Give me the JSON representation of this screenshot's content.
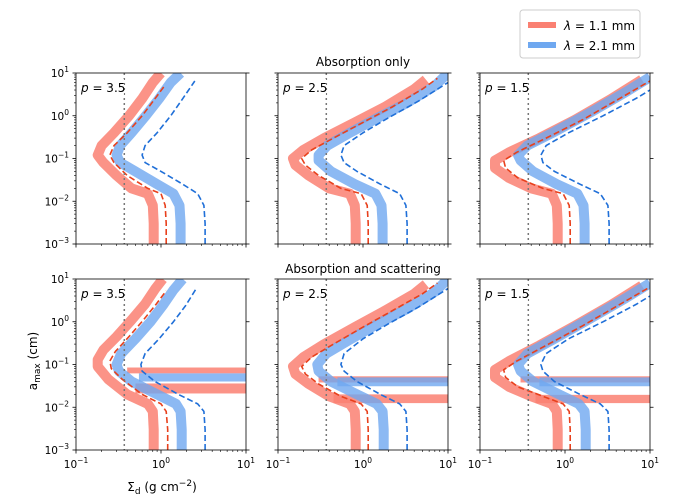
{
  "chart_data": {
    "type": "line",
    "layout": "2 rows x 3 columns of panels, shared log-scale axes",
    "xlabel": "Σ_d (g cm⁻²)",
    "xlabel_parts": {
      "base": "Σ",
      "sub": "d",
      "rest": " (g cm",
      "sup": "−2",
      "end": ")"
    },
    "ylabel": "a_max (cm)",
    "ylabel_parts": {
      "base": "a",
      "sub": "max",
      "rest": " (cm)"
    },
    "xscale": "log",
    "yscale": "log",
    "xlim": [
      0.1,
      10
    ],
    "ylim": [
      0.001,
      10
    ],
    "x_tick_values": [
      0.1,
      1,
      10
    ],
    "x_tick_labels": [
      {
        "base": "10",
        "exp": "−1"
      },
      {
        "base": "10",
        "exp": "0"
      },
      {
        "base": "10",
        "exp": "1"
      }
    ],
    "y_tick_values": [
      0.001,
      0.01,
      0.1,
      1,
      10
    ],
    "y_tick_labels": [
      {
        "base": "10",
        "exp": "−3"
      },
      {
        "base": "10",
        "exp": "−2"
      },
      {
        "base": "10",
        "exp": "−1"
      },
      {
        "base": "10",
        "exp": "0"
      },
      {
        "base": "10",
        "exp": "1"
      }
    ],
    "vertical_dotted_line_x": 0.37,
    "row_titles": [
      "Absorption only",
      "Absorption and scattering"
    ],
    "panel_labels": [
      "p = 3.5",
      "p = 2.5",
      "p = 1.5"
    ],
    "panel_label_parts": [
      {
        "var": "p",
        "eq": " = 3.5"
      },
      {
        "var": "p",
        "eq": " = 2.5"
      },
      {
        "var": "p",
        "eq": " = 1.5"
      }
    ],
    "legend": {
      "position": "top-right, outside panels",
      "entries": [
        {
          "label": "λ = 1.1 mm",
          "var": "λ",
          "eq": " = 1.1 mm",
          "color": "#fa8072"
        },
        {
          "label": "λ = 2.1 mm",
          "var": "λ",
          "eq": " = 2.1 mm",
          "color": "#6fa8f0"
        }
      ]
    },
    "colors": {
      "thick_red": "#fa8072",
      "thick_blue": "#6fa8f0",
      "dashed_red": "#e8401c",
      "dashed_blue": "#1f6fd8",
      "dotted": "#777777"
    },
    "series": [
      {
        "row": 0,
        "col": 0,
        "name": "λ = 1.1 mm",
        "style": "thick",
        "color": "thick_red",
        "x": [
          0.82,
          0.82,
          0.8,
          0.7,
          0.45,
          0.3,
          0.21,
          0.18,
          0.2,
          0.28,
          0.42,
          0.6,
          0.8,
          1.0
        ],
        "y": [
          0.001,
          0.003,
          0.008,
          0.015,
          0.02,
          0.04,
          0.08,
          0.12,
          0.2,
          0.4,
          1,
          2.5,
          6,
          10
        ]
      },
      {
        "row": 0,
        "col": 0,
        "name": "λ = 2.1 mm",
        "style": "thick",
        "color": "thick_blue",
        "x": [
          1.7,
          1.7,
          1.65,
          1.4,
          0.9,
          0.5,
          0.33,
          0.3,
          0.33,
          0.45,
          0.66,
          0.95,
          1.3,
          1.7
        ],
        "y": [
          0.001,
          0.003,
          0.008,
          0.015,
          0.025,
          0.05,
          0.08,
          0.12,
          0.2,
          0.4,
          1,
          2.5,
          6,
          10
        ]
      },
      {
        "row": 0,
        "col": 0,
        "name": "λ = 1.1 mm (dashed)",
        "style": "dashed",
        "color": "dashed_red",
        "x": [
          1.15,
          1.15,
          1.12,
          1.0,
          0.7,
          0.4,
          0.28,
          0.25,
          0.28,
          0.4,
          0.6,
          0.85,
          1.1
        ],
        "y": [
          0.001,
          0.003,
          0.008,
          0.015,
          0.02,
          0.04,
          0.08,
          0.12,
          0.2,
          0.4,
          1,
          2.5,
          5
        ]
      },
      {
        "row": 0,
        "col": 0,
        "name": "λ = 2.1 mm (dashed)",
        "style": "dashed",
        "color": "dashed_blue",
        "x": [
          3.3,
          3.3,
          3.2,
          2.7,
          1.8,
          1.0,
          0.65,
          0.6,
          0.65,
          0.9,
          1.3,
          1.8,
          2.5
        ],
        "y": [
          0.001,
          0.003,
          0.008,
          0.015,
          0.025,
          0.05,
          0.08,
          0.12,
          0.2,
          0.4,
          1,
          2.5,
          6.5
        ]
      },
      {
        "row": 0,
        "col": 1,
        "name": "λ = 1.1 mm",
        "style": "thick",
        "color": "thick_red",
        "x": [
          0.82,
          0.82,
          0.8,
          0.7,
          0.4,
          0.23,
          0.16,
          0.15,
          0.2,
          0.35,
          0.8,
          1.8,
          4.0,
          5.5
        ],
        "y": [
          0.001,
          0.003,
          0.008,
          0.015,
          0.02,
          0.04,
          0.07,
          0.1,
          0.16,
          0.3,
          0.7,
          1.6,
          4.2,
          7
        ]
      },
      {
        "row": 0,
        "col": 1,
        "name": "λ = 2.1 mm",
        "style": "thick",
        "color": "thick_blue",
        "x": [
          1.7,
          1.7,
          1.65,
          1.4,
          0.8,
          0.42,
          0.3,
          0.3,
          0.38,
          0.7,
          1.5,
          3.3,
          7,
          10
        ],
        "y": [
          0.001,
          0.003,
          0.008,
          0.015,
          0.025,
          0.05,
          0.09,
          0.12,
          0.2,
          0.4,
          0.9,
          2.0,
          5,
          10
        ]
      },
      {
        "row": 0,
        "col": 1,
        "name": "λ = 1.1 mm (dashed)",
        "style": "dashed",
        "color": "dashed_red",
        "x": [
          1.15,
          1.15,
          1.12,
          0.95,
          0.55,
          0.3,
          0.21,
          0.19,
          0.25,
          0.45,
          1.0,
          2.2,
          5.0,
          7.5
        ],
        "y": [
          0.001,
          0.003,
          0.008,
          0.015,
          0.02,
          0.04,
          0.07,
          0.1,
          0.16,
          0.3,
          0.7,
          1.6,
          4.2,
          7.5
        ]
      },
      {
        "row": 0,
        "col": 1,
        "name": "λ = 2.1 mm (dashed)",
        "style": "dashed",
        "color": "dashed_blue",
        "x": [
          3.3,
          3.3,
          3.2,
          2.7,
          1.6,
          0.85,
          0.6,
          0.55,
          0.6,
          1.0,
          2.0,
          4.5,
          10
        ],
        "y": [
          0.001,
          0.003,
          0.008,
          0.015,
          0.025,
          0.05,
          0.08,
          0.12,
          0.2,
          0.4,
          0.9,
          2.2,
          6
        ]
      },
      {
        "row": 0,
        "col": 2,
        "name": "λ = 1.1 mm",
        "style": "thick",
        "color": "thick_red",
        "x": [
          0.82,
          0.82,
          0.8,
          0.7,
          0.4,
          0.22,
          0.15,
          0.15,
          0.22,
          0.5,
          1.3,
          3.4,
          8
        ],
        "y": [
          0.001,
          0.003,
          0.008,
          0.015,
          0.02,
          0.035,
          0.06,
          0.09,
          0.14,
          0.3,
          0.8,
          2.4,
          7
        ]
      },
      {
        "row": 0,
        "col": 2,
        "name": "λ = 2.1 mm",
        "style": "thick",
        "color": "thick_blue",
        "x": [
          1.7,
          1.7,
          1.65,
          1.4,
          0.8,
          0.42,
          0.3,
          0.28,
          0.36,
          0.75,
          2.0,
          5.2,
          10
        ],
        "y": [
          0.001,
          0.003,
          0.008,
          0.015,
          0.025,
          0.05,
          0.09,
          0.12,
          0.2,
          0.42,
          1.2,
          3.6,
          8
        ]
      },
      {
        "row": 0,
        "col": 2,
        "name": "λ = 1.1 mm (dashed)",
        "style": "dashed",
        "color": "dashed_red",
        "x": [
          1.15,
          1.15,
          1.12,
          0.95,
          0.55,
          0.28,
          0.2,
          0.19,
          0.27,
          0.6,
          1.6,
          4.2,
          10
        ],
        "y": [
          0.001,
          0.003,
          0.008,
          0.015,
          0.02,
          0.035,
          0.06,
          0.09,
          0.14,
          0.3,
          0.8,
          2.4,
          6.5
        ]
      },
      {
        "row": 0,
        "col": 2,
        "name": "λ = 2.1 mm (dashed)",
        "style": "dashed",
        "color": "dashed_blue",
        "x": [
          3.3,
          3.3,
          3.2,
          2.6,
          1.5,
          0.75,
          0.55,
          0.52,
          0.6,
          1.1,
          2.8,
          7,
          10
        ],
        "y": [
          0.001,
          0.003,
          0.008,
          0.015,
          0.025,
          0.05,
          0.08,
          0.12,
          0.2,
          0.4,
          1.0,
          2.6,
          4
        ]
      },
      {
        "row": 1,
        "col": 0,
        "name": "λ = 1.1 mm",
        "style": "thick",
        "color": "thick_red",
        "x": [
          0.82,
          0.82,
          0.8,
          0.7,
          0.4,
          0.24,
          0.18,
          0.18,
          0.21,
          0.3,
          0.45,
          0.65,
          0.85,
          1.05
        ],
        "y": [
          0.001,
          0.003,
          0.008,
          0.012,
          0.02,
          0.045,
          0.09,
          0.13,
          0.22,
          0.45,
          1.1,
          2.6,
          5.8,
          10
        ]
      },
      {
        "row": 1,
        "col": 0,
        "name": "λ = 2.1 mm",
        "style": "thick",
        "color": "thick_blue",
        "x": [
          1.75,
          1.75,
          1.7,
          1.5,
          0.9,
          0.45,
          0.32,
          0.3,
          0.34,
          0.5,
          0.75,
          1.05,
          1.4,
          1.8
        ],
        "y": [
          0.001,
          0.003,
          0.008,
          0.012,
          0.02,
          0.04,
          0.07,
          0.1,
          0.18,
          0.4,
          1.0,
          2.4,
          5.5,
          10
        ]
      },
      {
        "row": 1,
        "col": 0,
        "name": "λ = 1.1 mm (dashed)",
        "style": "dashed",
        "color": "dashed_red",
        "x": [
          1.2,
          1.2,
          1.15,
          1.0,
          0.6,
          0.35,
          0.26,
          0.25,
          0.29,
          0.42,
          0.62,
          0.88,
          1.15
        ],
        "y": [
          0.001,
          0.003,
          0.008,
          0.012,
          0.02,
          0.045,
          0.08,
          0.12,
          0.2,
          0.45,
          1.1,
          2.6,
          5.3
        ]
      },
      {
        "row": 1,
        "col": 0,
        "name": "λ = 2.1 mm (dashed)",
        "style": "dashed",
        "color": "dashed_blue",
        "x": [
          3.3,
          3.3,
          3.2,
          2.7,
          1.6,
          0.85,
          0.6,
          0.58,
          0.65,
          0.95,
          1.4,
          1.95,
          2.6
        ],
        "y": [
          0.001,
          0.003,
          0.008,
          0.012,
          0.02,
          0.04,
          0.07,
          0.1,
          0.18,
          0.4,
          1.0,
          2.4,
          6
        ]
      },
      {
        "row": 1,
        "col": 0,
        "name": "λ = 1.1 mm plateau",
        "style": "band",
        "color": "thick_red",
        "x": [
          0.5,
          10
        ],
        "y": [
          0.028,
          0.028
        ],
        "y_low": 0.021,
        "y_high": 0.036
      },
      {
        "row": 1,
        "col": 0,
        "name": "λ = 1.1 mm plateau upper",
        "style": "band",
        "color": "thick_red",
        "x": [
          0.4,
          10
        ],
        "y": [
          0.072,
          0.072
        ],
        "y_low": 0.062,
        "y_high": 0.085
      },
      {
        "row": 1,
        "col": 0,
        "name": "λ = 2.1 mm plateau",
        "style": "band",
        "color": "thick_blue",
        "x": [
          0.55,
          10
        ],
        "y": [
          0.05,
          0.05
        ],
        "y_low": 0.04,
        "y_high": 0.062
      },
      {
        "row": 1,
        "col": 1,
        "name": "λ = 1.1 mm",
        "style": "thick",
        "color": "thick_red",
        "x": [
          0.82,
          0.82,
          0.8,
          0.7,
          0.4,
          0.23,
          0.16,
          0.15,
          0.2,
          0.35,
          0.8,
          1.8,
          4.0,
          5.5
        ],
        "y": [
          0.001,
          0.003,
          0.008,
          0.012,
          0.018,
          0.035,
          0.06,
          0.09,
          0.15,
          0.3,
          0.75,
          1.8,
          4.5,
          7.5
        ]
      },
      {
        "row": 1,
        "col": 1,
        "name": "λ = 2.1 mm",
        "style": "thick",
        "color": "thick_blue",
        "x": [
          1.75,
          1.75,
          1.7,
          1.45,
          0.85,
          0.42,
          0.3,
          0.29,
          0.37,
          0.7,
          1.5,
          3.3,
          7,
          10
        ],
        "y": [
          0.001,
          0.003,
          0.008,
          0.012,
          0.02,
          0.04,
          0.07,
          0.1,
          0.18,
          0.38,
          0.9,
          2.0,
          5,
          10
        ]
      },
      {
        "row": 1,
        "col": 1,
        "name": "λ = 1.1 mm (dashed)",
        "style": "dashed",
        "color": "dashed_red",
        "x": [
          1.15,
          1.15,
          1.12,
          0.95,
          0.55,
          0.3,
          0.21,
          0.19,
          0.25,
          0.45,
          1.0,
          2.2,
          5.0,
          7.5
        ],
        "y": [
          0.001,
          0.003,
          0.008,
          0.012,
          0.018,
          0.035,
          0.06,
          0.09,
          0.15,
          0.3,
          0.75,
          1.8,
          4.5,
          8
        ]
      },
      {
        "row": 1,
        "col": 1,
        "name": "λ = 2.1 mm (dashed)",
        "style": "dashed",
        "color": "dashed_blue",
        "x": [
          3.3,
          3.3,
          3.2,
          2.7,
          1.6,
          0.85,
          0.6,
          0.55,
          0.6,
          1.0,
          2.0,
          4.5,
          10
        ],
        "y": [
          0.001,
          0.003,
          0.008,
          0.012,
          0.02,
          0.04,
          0.07,
          0.1,
          0.18,
          0.4,
          0.9,
          2.2,
          6
        ]
      },
      {
        "row": 1,
        "col": 1,
        "name": "λ = 1.1 mm plateau",
        "style": "band",
        "color": "thick_red",
        "x": [
          0.45,
          10
        ],
        "y": [
          0.016,
          0.016
        ],
        "y_low": 0.0125,
        "y_high": 0.02
      },
      {
        "row": 1,
        "col": 1,
        "name": "λ = 1.1 mm plateau upper",
        "style": "band",
        "color": "thick_red",
        "x": [
          0.3,
          10
        ],
        "y": [
          0.045,
          0.045
        ],
        "y_low": 0.038,
        "y_high": 0.053
      },
      {
        "row": 1,
        "col": 1,
        "name": "λ = 2.1 mm plateau",
        "style": "band",
        "color": "thick_blue",
        "x": [
          0.5,
          10
        ],
        "y": [
          0.04,
          0.04
        ],
        "y_low": 0.031,
        "y_high": 0.05
      },
      {
        "row": 1,
        "col": 2,
        "name": "λ = 1.1 mm",
        "style": "thick",
        "color": "thick_red",
        "x": [
          0.82,
          0.82,
          0.8,
          0.7,
          0.4,
          0.22,
          0.15,
          0.15,
          0.22,
          0.5,
          1.3,
          3.4,
          8
        ],
        "y": [
          0.001,
          0.003,
          0.008,
          0.012,
          0.018,
          0.03,
          0.05,
          0.075,
          0.12,
          0.28,
          0.8,
          2.4,
          7
        ]
      },
      {
        "row": 1,
        "col": 2,
        "name": "λ = 2.1 mm",
        "style": "thick",
        "color": "thick_blue",
        "x": [
          1.75,
          1.75,
          1.7,
          1.45,
          0.85,
          0.42,
          0.3,
          0.28,
          0.36,
          0.75,
          2.0,
          5.2,
          10
        ],
        "y": [
          0.001,
          0.003,
          0.008,
          0.012,
          0.02,
          0.04,
          0.07,
          0.1,
          0.18,
          0.4,
          1.2,
          3.6,
          8
        ]
      },
      {
        "row": 1,
        "col": 2,
        "name": "λ = 1.1 mm (dashed)",
        "style": "dashed",
        "color": "dashed_red",
        "x": [
          1.15,
          1.15,
          1.12,
          0.95,
          0.55,
          0.28,
          0.2,
          0.19,
          0.27,
          0.6,
          1.6,
          4.2,
          10
        ],
        "y": [
          0.001,
          0.003,
          0.008,
          0.012,
          0.018,
          0.03,
          0.05,
          0.075,
          0.12,
          0.28,
          0.8,
          2.4,
          6.5
        ]
      },
      {
        "row": 1,
        "col": 2,
        "name": "λ = 2.1 mm (dashed)",
        "style": "dashed",
        "color": "dashed_blue",
        "x": [
          3.3,
          3.3,
          3.2,
          2.6,
          1.5,
          0.75,
          0.55,
          0.52,
          0.6,
          1.1,
          2.8,
          7,
          10
        ],
        "y": [
          0.001,
          0.003,
          0.008,
          0.012,
          0.02,
          0.04,
          0.07,
          0.1,
          0.18,
          0.4,
          1.0,
          2.6,
          4
        ]
      },
      {
        "row": 1,
        "col": 2,
        "name": "λ = 1.1 mm plateau",
        "style": "band",
        "color": "thick_red",
        "x": [
          0.45,
          10
        ],
        "y": [
          0.0155,
          0.0155
        ],
        "y_low": 0.0125,
        "y_high": 0.0195
      },
      {
        "row": 1,
        "col": 2,
        "name": "λ = 1.1 mm plateau upper",
        "style": "band",
        "color": "thick_red",
        "x": [
          0.3,
          10
        ],
        "y": [
          0.045,
          0.045
        ],
        "y_low": 0.038,
        "y_high": 0.053
      },
      {
        "row": 1,
        "col": 2,
        "name": "λ = 2.1 mm plateau",
        "style": "band",
        "color": "thick_blue",
        "x": [
          0.5,
          10
        ],
        "y": [
          0.04,
          0.04
        ],
        "y_low": 0.031,
        "y_high": 0.05
      }
    ]
  }
}
